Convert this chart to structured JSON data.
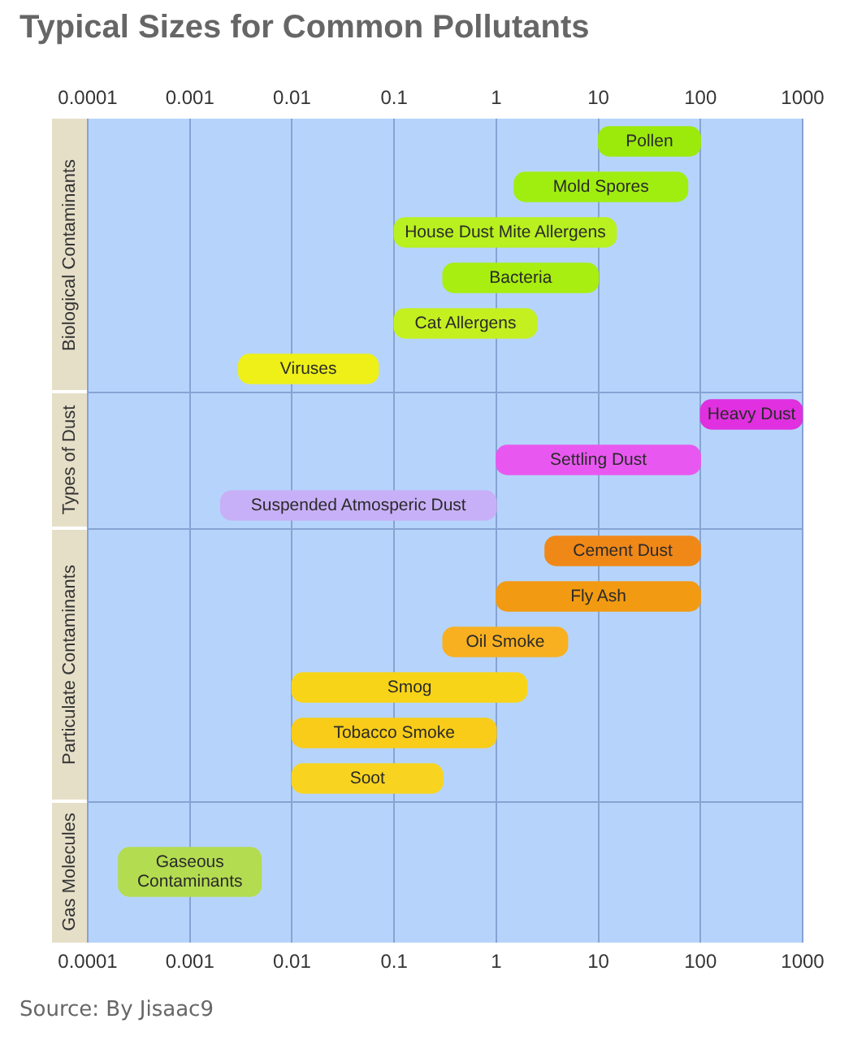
{
  "chart_data": [
    {
      "type": "bar",
      "title": "Typical Sizes for Common Pollutants",
      "orientation": "horizontal",
      "ylabel": "Biological Contaminants",
      "categories": [
        "Pollen",
        "Mold Spores",
        "House Dust Mite Allergens",
        "Bacteria",
        "Cat Allergens",
        "Viruses"
      ],
      "base": [
        10,
        1.5,
        0.1,
        0.3,
        0.1,
        0.003
      ],
      "values": [
        90,
        73.5,
        14.9,
        9.7,
        2.4,
        0.067
      ],
      "colors": [
        "#9bea0c",
        "#a0ee10",
        "#b8f020",
        "#a8ee10",
        "#c4f020",
        "#eef018"
      ],
      "xlim": [
        0.0001,
        1000
      ],
      "xticks": [
        0.0001,
        0.001,
        0.01,
        0.1,
        1,
        10,
        100,
        1000
      ],
      "log": "x",
      "grid": "x"
    },
    {
      "type": "bar",
      "orientation": "horizontal",
      "ylabel": "Types of Dust",
      "categories": [
        "Heavy Dust",
        "Settling Dust",
        "Suspended Atmosperic Dust"
      ],
      "base": [
        100,
        1,
        0.002
      ],
      "values": [
        900,
        99,
        0.998
      ],
      "colors": [
        "#e030e0",
        "#e858f0",
        "#c8b0f8"
      ],
      "xlim": [
        0.0001,
        1000
      ],
      "xticks": [
        0.0001,
        0.001,
        0.01,
        0.1,
        1,
        10,
        100,
        1000
      ],
      "log": "x",
      "grid": "x",
      "tick_labels": "y"
    },
    {
      "type": "bar",
      "orientation": "horizontal",
      "ylabel": "Particulate Contaminants",
      "categories": [
        "Cement Dust",
        "Fly Ash",
        "Oil Smoke",
        "Smog",
        "Tobacco Smoke",
        "Soot"
      ],
      "base": [
        3,
        1,
        0.3,
        0.01,
        0.01,
        0.01
      ],
      "values": [
        97,
        99,
        4.7,
        1.99,
        0.99,
        0.29
      ],
      "colors": [
        "#f08818",
        "#f29a12",
        "#f8b020",
        "#f8d418",
        "#f8cc18",
        "#f8d420"
      ],
      "xlim": [
        0.0001,
        1000
      ],
      "xticks": [
        0.0001,
        0.001,
        0.01,
        0.1,
        1,
        10,
        100,
        1000
      ],
      "log": "x",
      "grid": "x",
      "tick_labels": "y"
    },
    {
      "type": "bar",
      "orientation": "horizontal",
      "ylabel": "Gas Molecules",
      "categories": [
        "Gaseous Contaminants"
      ],
      "base": [
        0.0002
      ],
      "values": [
        0.0048
      ],
      "colors": [
        "#b4dc50"
      ],
      "xlim": [
        0.0001,
        1000
      ],
      "xticks": [
        0.0001,
        0.001,
        0.01,
        0.1,
        1,
        10,
        100,
        1000
      ],
      "log": "x",
      "grid": "x",
      "annotations": [
        "Source: By Jisaac9"
      ]
    }
  ]
}
